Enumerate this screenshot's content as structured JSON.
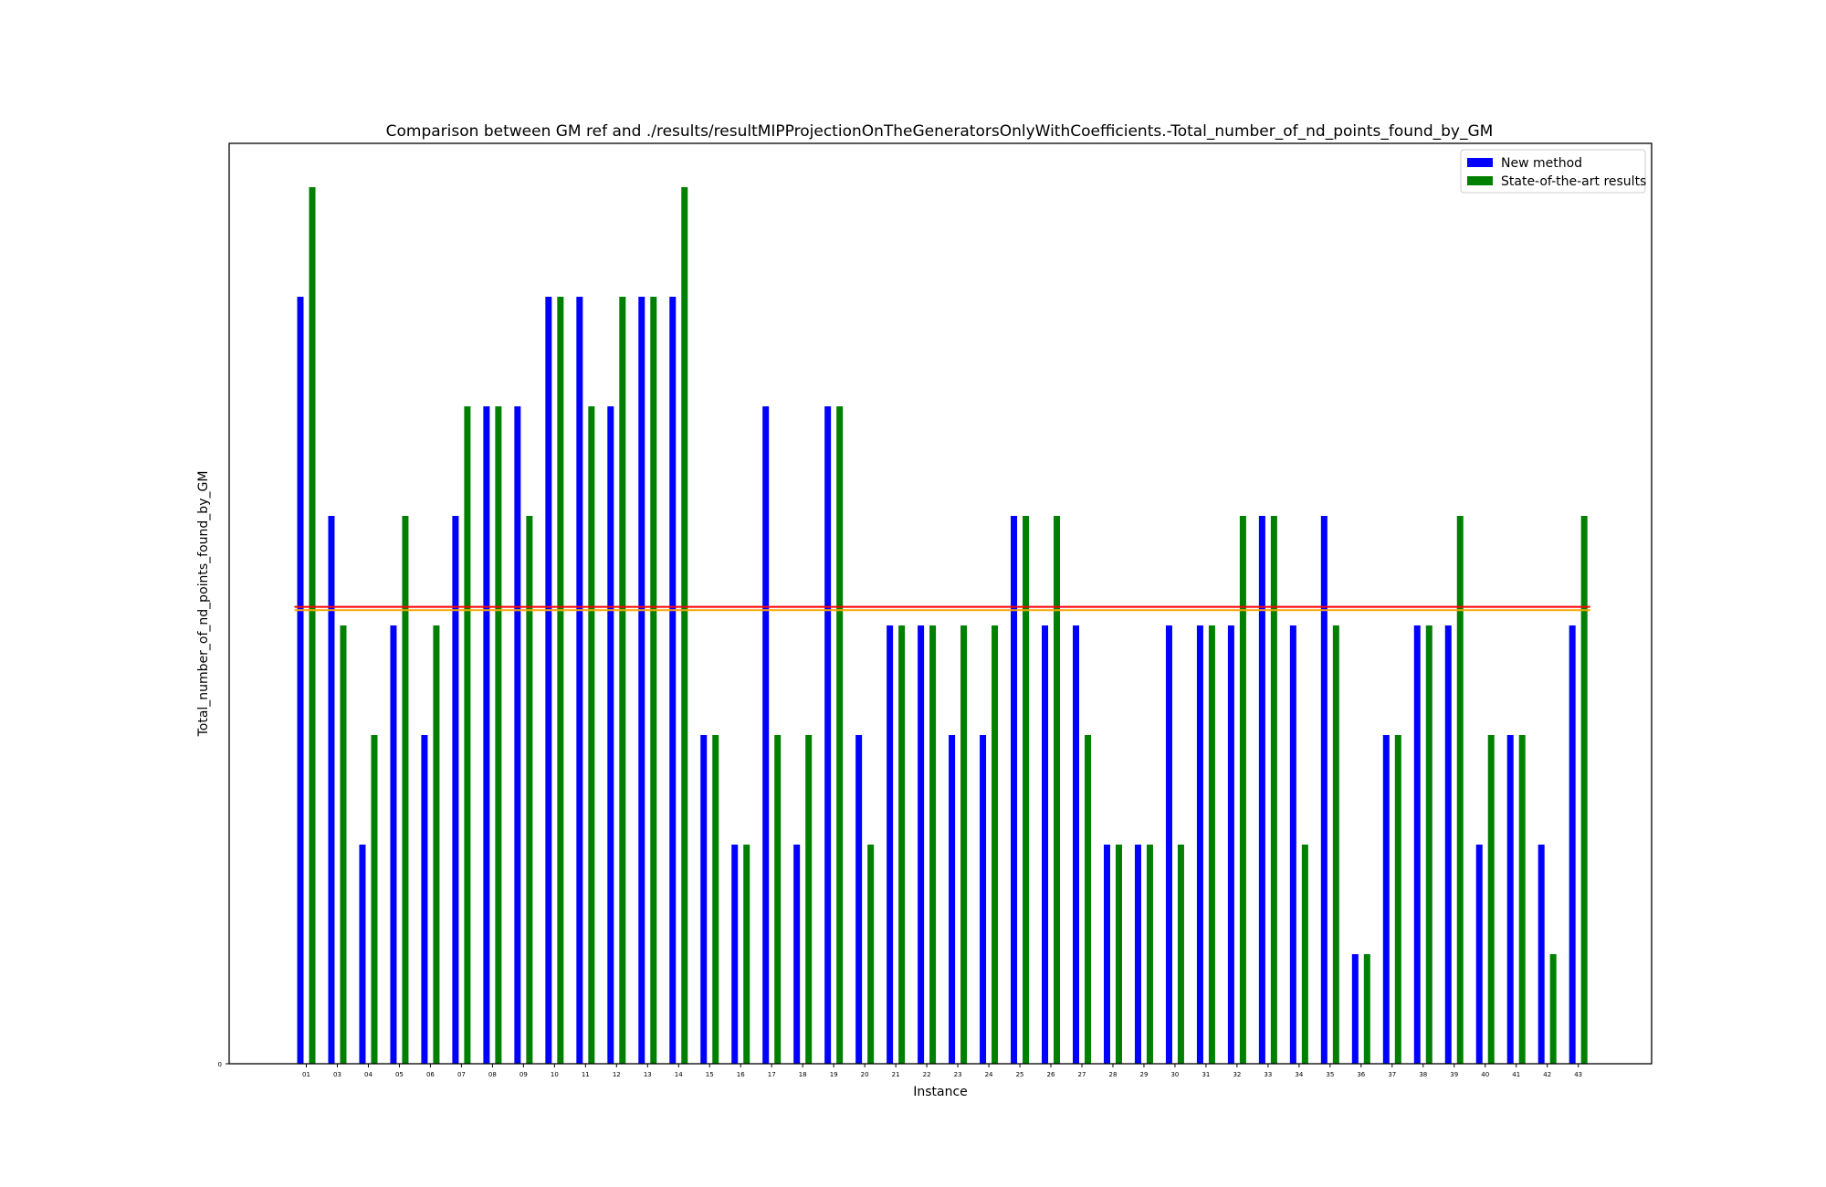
{
  "chart_data": {
    "type": "bar",
    "title": "Comparison between GM ref and ./results/resultMIPProjectionOnTheGeneratorsOnlyWithCoefficients.-Total_number_of_nd_points_found_by_GM",
    "xlabel": "Instance",
    "ylabel": "Total_number_of_nd_points_found_by_GM",
    "yticks": [
      {
        "value": 0,
        "label": "0"
      }
    ],
    "ylim": [
      0,
      8.4
    ],
    "grid": false,
    "legend_position": "top-right",
    "categories": [
      "01",
      "03",
      "04",
      "05",
      "06",
      "07",
      "08",
      "09",
      "10",
      "11",
      "12",
      "13",
      "14",
      "15",
      "16",
      "17",
      "18",
      "19",
      "20",
      "21",
      "22",
      "23",
      "24",
      "25",
      "26",
      "27",
      "28",
      "29",
      "30",
      "31",
      "32",
      "33",
      "34",
      "35",
      "36",
      "37",
      "38",
      "39",
      "40",
      "41",
      "42",
      "43"
    ],
    "series": [
      {
        "name": "New method",
        "color": "#0000ff",
        "values": [
          7,
          5,
          2,
          4,
          3,
          5,
          6,
          6,
          7,
          7,
          6,
          7,
          7,
          3,
          2,
          6,
          2,
          6,
          3,
          4,
          4,
          3,
          3,
          5,
          4,
          4,
          2,
          2,
          4,
          4,
          4,
          5,
          4,
          5,
          1,
          3,
          4,
          4,
          2,
          3,
          2,
          4
        ]
      },
      {
        "name": "State-of-the-art results",
        "color": "#008000",
        "values": [
          8,
          4,
          3,
          5,
          4,
          6,
          6,
          5,
          7,
          6,
          7,
          7,
          8,
          3,
          2,
          3,
          3,
          6,
          2,
          4,
          4,
          4,
          4,
          5,
          5,
          3,
          2,
          2,
          2,
          4,
          5,
          5,
          2,
          4,
          1,
          3,
          4,
          5,
          3,
          3,
          1,
          5
        ]
      }
    ],
    "reference_lines": [
      {
        "value": 4.17,
        "color": "#ff0000"
      },
      {
        "value": 4.14,
        "color": "#ffa500"
      }
    ]
  }
}
